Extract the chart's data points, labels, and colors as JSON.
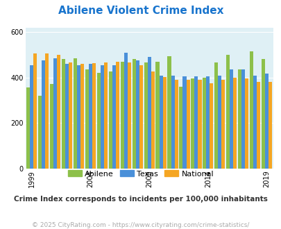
{
  "title": "Abilene Violent Crime Index",
  "title_color": "#1874CD",
  "subtitle": "Crime Index corresponds to incidents per 100,000 inhabitants",
  "subtitle_color": "#333333",
  "footer": "© 2025 CityRating.com - https://www.cityrating.com/crime-statistics/",
  "footer_color": "#aaaaaa",
  "years": [
    1999,
    2000,
    2001,
    2002,
    2003,
    2004,
    2005,
    2006,
    2007,
    2008,
    2009,
    2010,
    2011,
    2012,
    2013,
    2014,
    2015,
    2016,
    2017,
    2018,
    2019
  ],
  "abilene": [
    355,
    320,
    370,
    480,
    485,
    435,
    420,
    425,
    470,
    480,
    465,
    470,
    495,
    358,
    395,
    400,
    465,
    500,
    435,
    515,
    480
  ],
  "texas": [
    455,
    475,
    485,
    460,
    455,
    460,
    455,
    455,
    510,
    475,
    490,
    408,
    408,
    405,
    405,
    405,
    408,
    435,
    435,
    408,
    418
  ],
  "national": [
    505,
    505,
    500,
    465,
    460,
    462,
    465,
    468,
    465,
    455,
    425,
    402,
    390,
    390,
    390,
    375,
    390,
    400,
    395,
    380,
    380
  ],
  "abilene_color": "#8DC04A",
  "texas_color": "#4A90D9",
  "national_color": "#F5A623",
  "bg_color": "#DFF0F5",
  "ylim": [
    0,
    620
  ],
  "yticks": [
    0,
    200,
    400,
    600
  ],
  "xtick_years": [
    1999,
    2004,
    2009,
    2014,
    2019
  ],
  "bar_width": 0.3,
  "legend_labels": [
    "Abilene",
    "Texas",
    "National"
  ]
}
